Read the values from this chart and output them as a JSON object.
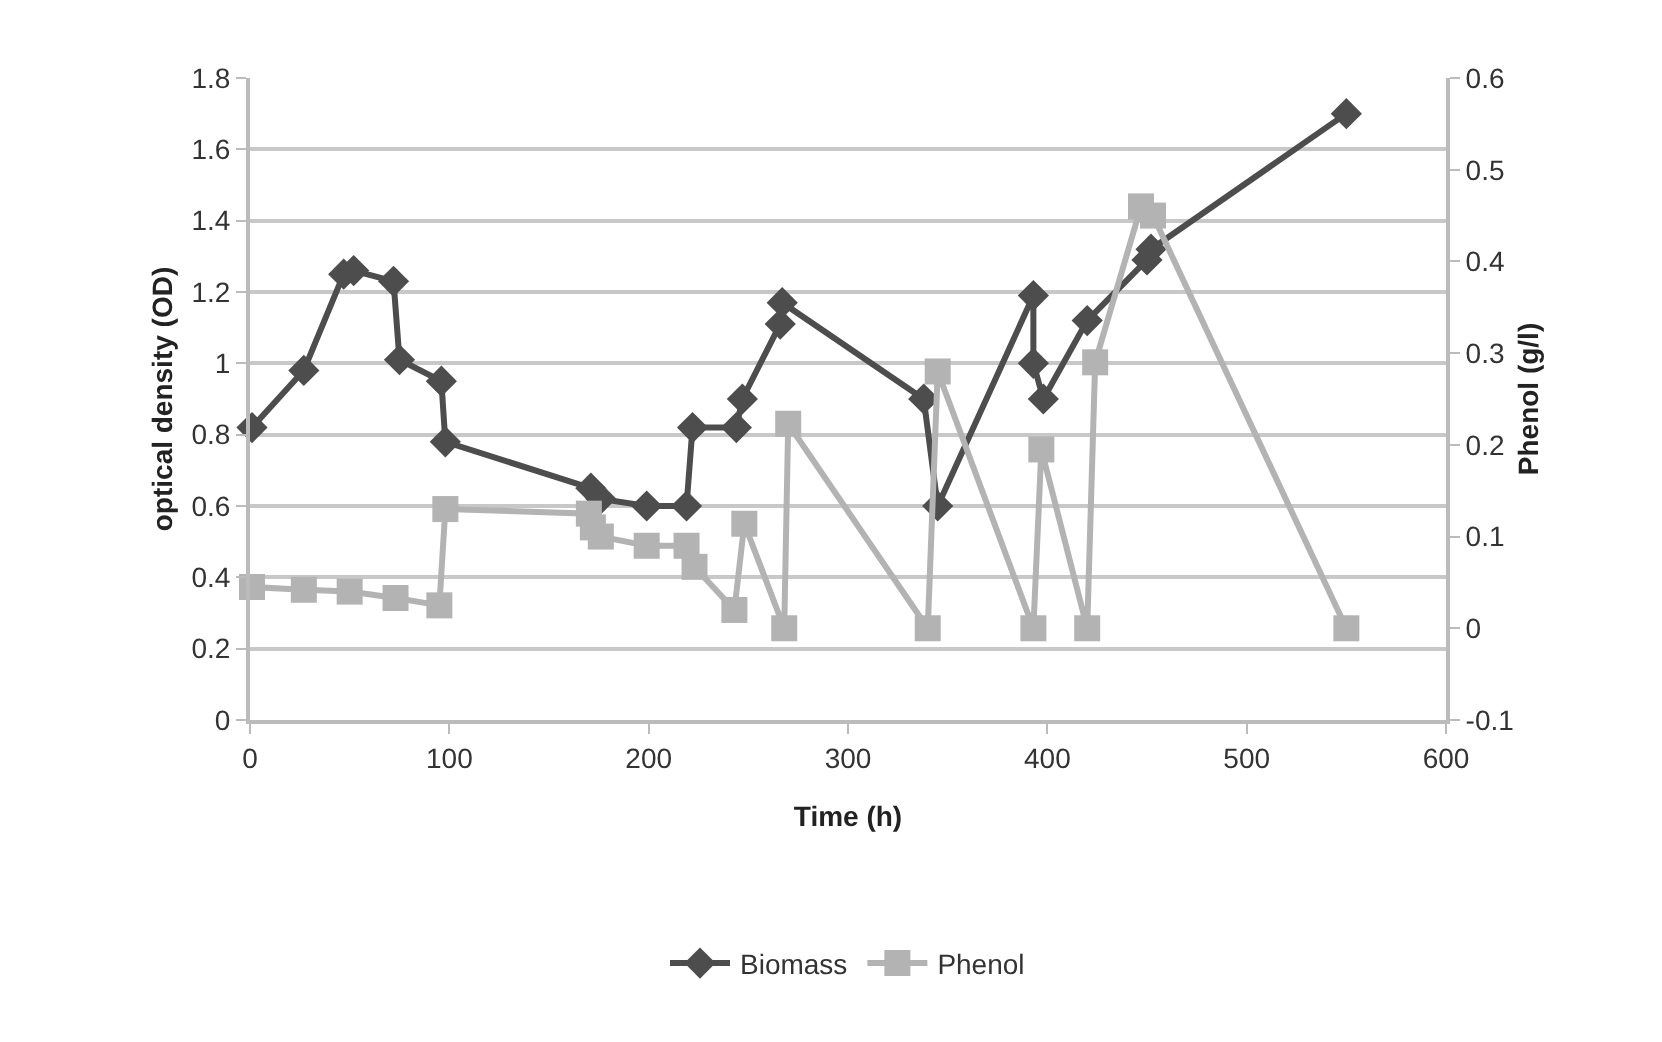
{
  "chart_data": {
    "type": "line",
    "xlabel": "Time (h)",
    "ylabel": "optical density (OD)",
    "y2label": "Phenol (g/l)",
    "xlim": [
      0,
      600
    ],
    "xticks": [
      0,
      100,
      200,
      300,
      400,
      500,
      600
    ],
    "ylim": [
      0,
      1.8
    ],
    "yticks": [
      0,
      0.2,
      0.4,
      0.6,
      0.8,
      1,
      1.2,
      1.4,
      1.6,
      1.8
    ],
    "y2lim": [
      -0.1,
      0.6
    ],
    "y2ticks": [
      -0.1,
      0,
      0.1,
      0.2,
      0.3,
      0.4,
      0.5,
      0.6
    ],
    "grid": "y",
    "legend": "bottom",
    "line_style": "solid",
    "series": [
      {
        "name": "Biomass",
        "color": "#4d4d4d",
        "marker": "diamond",
        "x": [
          1,
          27,
          47,
          52,
          72,
          75,
          96,
          98,
          171,
          176,
          199,
          219,
          222,
          244,
          247,
          266,
          267,
          338,
          345,
          393,
          393,
          398,
          420,
          450,
          452,
          550
        ],
        "values": [
          0.82,
          0.98,
          1.25,
          1.26,
          1.23,
          1.01,
          0.95,
          0.78,
          0.65,
          0.62,
          0.6,
          0.6,
          0.82,
          0.82,
          0.9,
          1.11,
          1.17,
          0.9,
          0.6,
          1.19,
          1.0,
          0.9,
          1.12,
          1.29,
          1.32,
          1.7
        ]
      },
      {
        "name": "Phenol",
        "color": "#b3b3b3",
        "marker": "square",
        "axis": "y2",
        "x": [
          1,
          27,
          50,
          73,
          95,
          98,
          170,
          172,
          176,
          199,
          219,
          223,
          243,
          248,
          268,
          270,
          340,
          345,
          393,
          397,
          420,
          424,
          447,
          453,
          550
        ],
        "values": [
          0.045,
          0.042,
          0.04,
          0.033,
          0.025,
          0.13,
          0.125,
          0.11,
          0.1,
          0.09,
          0.09,
          0.067,
          0.02,
          0.114,
          0,
          0.223,
          0,
          0.28,
          0,
          0.195,
          0,
          0.29,
          0.46,
          0.45,
          0
        ]
      }
    ]
  }
}
